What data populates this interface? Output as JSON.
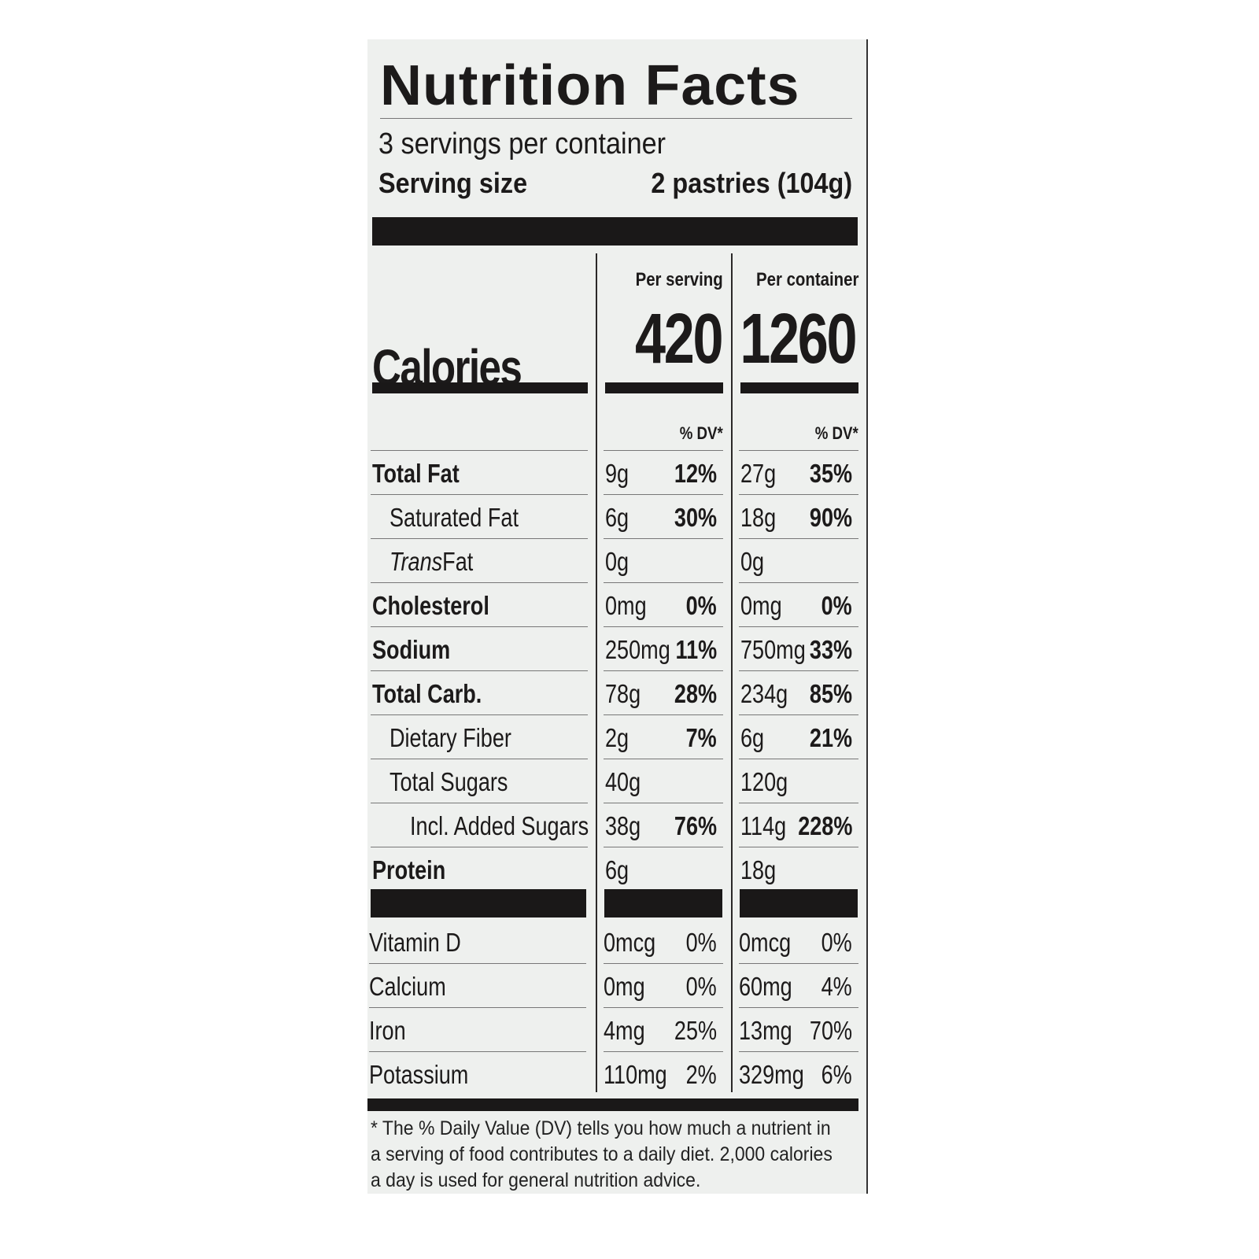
{
  "title": "Nutrition Facts",
  "servings_per_container": "3 servings per container",
  "serving_size": {
    "label": "Serving size",
    "value": "2 pastries (104g)"
  },
  "columns": {
    "per_serving": "Per serving",
    "per_container": "Per container"
  },
  "calories": {
    "label": "Calories",
    "per_serving": "420",
    "per_container": "1260"
  },
  "dv_header": "% DV*",
  "nutrients": [
    {
      "name": "Total Fat",
      "bold": true,
      "indent": 0,
      "serving_amount": "9g",
      "serving_dv": "12%",
      "container_amount": "27g",
      "container_dv": "35%"
    },
    {
      "name": "Saturated Fat",
      "bold": false,
      "indent": 1,
      "serving_amount": "6g",
      "serving_dv": "30%",
      "container_amount": "18g",
      "container_dv": "90%"
    },
    {
      "name_italic": "Trans",
      "name": " Fat",
      "bold": false,
      "indent": 1,
      "serving_amount": "0g",
      "serving_dv": "",
      "container_amount": "0g",
      "container_dv": ""
    },
    {
      "name": "Cholesterol",
      "bold": true,
      "indent": 0,
      "serving_amount": "0mg",
      "serving_dv": "0%",
      "container_amount": "0mg",
      "container_dv": "0%"
    },
    {
      "name": "Sodium",
      "bold": true,
      "indent": 0,
      "serving_amount": "250mg",
      "serving_dv": "11%",
      "container_amount": "750mg",
      "container_dv": "33%"
    },
    {
      "name": "Total Carb.",
      "bold": true,
      "indent": 0,
      "serving_amount": "78g",
      "serving_dv": "28%",
      "container_amount": "234g",
      "container_dv": "85%"
    },
    {
      "name": "Dietary Fiber",
      "bold": false,
      "indent": 1,
      "serving_amount": "2g",
      "serving_dv": "7%",
      "container_amount": "6g",
      "container_dv": "21%"
    },
    {
      "name": "Total Sugars",
      "bold": false,
      "indent": 1,
      "serving_amount": "40g",
      "serving_dv": "",
      "container_amount": "120g",
      "container_dv": ""
    },
    {
      "name": "Incl. Added Sugars",
      "bold": false,
      "indent": 2,
      "serving_amount": "38g",
      "serving_dv": "76%",
      "container_amount": "114g",
      "container_dv": "228%"
    },
    {
      "name": "Protein",
      "bold": true,
      "indent": 0,
      "serving_amount": "6g",
      "serving_dv": "",
      "container_amount": "18g",
      "container_dv": ""
    }
  ],
  "vitamins": [
    {
      "name": "Vitamin D",
      "serving_amount": "0mcg",
      "serving_dv": "0%",
      "container_amount": "0mcg",
      "container_dv": "0%"
    },
    {
      "name": "Calcium",
      "serving_amount": "0mg",
      "serving_dv": "0%",
      "container_amount": "60mg",
      "container_dv": "4%"
    },
    {
      "name": "Iron",
      "serving_amount": "4mg",
      "serving_dv": "25%",
      "container_amount": "13mg",
      "container_dv": "70%"
    },
    {
      "name": "Potassium",
      "serving_amount": "110mg",
      "serving_dv": "2%",
      "container_amount": "329mg",
      "container_dv": "6%"
    }
  ],
  "footnote": "* The % Daily Value (DV) tells you how much a nutrient in a serving of food contributes to a daily diet. 2,000 calories a day is used for general nutrition advice."
}
